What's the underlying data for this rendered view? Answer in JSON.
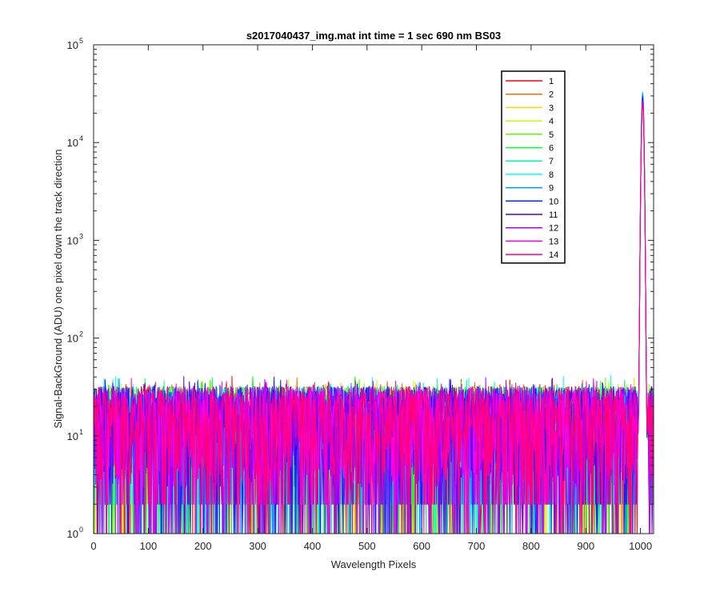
{
  "chart_data": {
    "type": "line",
    "title": "s2017040437_img.mat int time = 1 sec  690 nm BS03",
    "xlabel": "Wavelength Pixels",
    "ylabel": "Signal-BackGround (ADU) one pixel down the track direction",
    "xlim": [
      0,
      1024
    ],
    "ylim": [
      1,
      100000
    ],
    "yscale": "log",
    "xticks": [
      "0",
      "100",
      "200",
      "300",
      "400",
      "500",
      "600",
      "700",
      "800",
      "900",
      "1000"
    ],
    "yticks": [
      {
        "base": "10",
        "exp": "0"
      },
      {
        "base": "10",
        "exp": "1"
      },
      {
        "base": "10",
        "exp": "2"
      },
      {
        "base": "10",
        "exp": "3"
      },
      {
        "base": "10",
        "exp": "4"
      },
      {
        "base": "10",
        "exp": "5"
      }
    ],
    "legend_position": "top-right",
    "noise_floor": {
      "typical_range": [
        2,
        40
      ],
      "median": 10
    },
    "peak": {
      "x": 1004,
      "y_max": 33000,
      "y_min": 25000
    },
    "series": [
      {
        "name": "1",
        "color": "#ff0000",
        "peak": 30000
      },
      {
        "name": "2",
        "color": "#ff6a00",
        "peak": 28000
      },
      {
        "name": "3",
        "color": "#ffd500",
        "peak": 27000
      },
      {
        "name": "4",
        "color": "#bfff00",
        "peak": 29000
      },
      {
        "name": "5",
        "color": "#55ff00",
        "peak": 31000
      },
      {
        "name": "6",
        "color": "#00ff2b",
        "peak": 30000
      },
      {
        "name": "7",
        "color": "#00ff95",
        "peak": 32000
      },
      {
        "name": "8",
        "color": "#00ffff",
        "peak": 33000
      },
      {
        "name": "9",
        "color": "#0095ff",
        "peak": 32000
      },
      {
        "name": "10",
        "color": "#002bff",
        "peak": 30000
      },
      {
        "name": "11",
        "color": "#4000ff",
        "peak": 28000
      },
      {
        "name": "12",
        "color": "#aa00ff",
        "peak": 27000
      },
      {
        "name": "13",
        "color": "#ff00ea",
        "peak": 26000
      },
      {
        "name": "14",
        "color": "#ff0080",
        "peak": 25000
      }
    ]
  }
}
